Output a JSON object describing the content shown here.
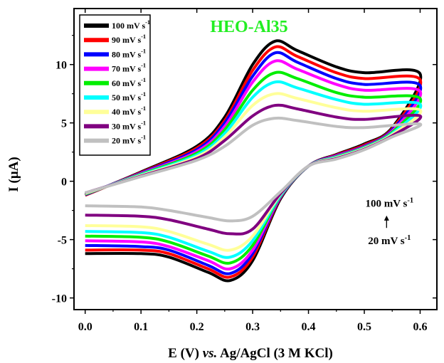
{
  "chart_data": {
    "type": "line",
    "title": "HEO-Al35",
    "xlabel_parts": [
      "E (V) ",
      "vs.",
      " Ag/AgCl (3 M KCl)"
    ],
    "ylabel": "I (µA)",
    "xlim": [
      -0.02,
      0.63
    ],
    "ylim": [
      -11,
      14.8
    ],
    "xticks": [
      0.0,
      0.1,
      0.2,
      0.3,
      0.4,
      0.5,
      0.6
    ],
    "xtick_labels": [
      "0.0",
      "0.1",
      "0.2",
      "0.3",
      "0.4",
      "0.5",
      "0.6"
    ],
    "yticks": [
      -10,
      -5,
      0,
      5,
      10
    ],
    "ytick_labels": [
      "-10",
      "-5",
      "0",
      "5",
      "10"
    ],
    "grid": false,
    "legend_position": "top-left",
    "annotation": {
      "top_base": "100 mV s",
      "bottom_base": "20 mV s",
      "superscript": "-1",
      "arrow_from_y": -4.0,
      "arrow_to_y": -3.0,
      "x": 0.545
    },
    "series": [
      {
        "name_base": "100 mV s",
        "name_sup": "-1",
        "color": "#000000",
        "x": [
          0.0,
          0.1,
          0.2,
          0.25,
          0.3,
          0.34,
          0.38,
          0.45,
          0.5,
          0.6,
          0.55,
          0.5,
          0.45,
          0.4,
          0.35,
          0.3,
          0.26,
          0.22,
          0.15,
          0.1,
          0.0
        ],
        "y": [
          -1.2,
          0.8,
          3.0,
          5.5,
          10.0,
          12.0,
          11.2,
          9.8,
          9.3,
          9.2,
          4.6,
          3.2,
          2.3,
          1.3,
          -1.5,
          -6.8,
          -8.5,
          -7.8,
          -6.5,
          -6.2,
          -6.2
        ]
      },
      {
        "name_base": "90 mV s",
        "name_sup": "-1",
        "color": "#ff0000",
        "x": [
          0.0,
          0.1,
          0.2,
          0.25,
          0.3,
          0.34,
          0.38,
          0.45,
          0.5,
          0.6,
          0.55,
          0.5,
          0.45,
          0.4,
          0.35,
          0.3,
          0.26,
          0.22,
          0.15,
          0.1,
          0.0
        ],
        "y": [
          -1.2,
          0.75,
          2.85,
          5.2,
          9.5,
          11.5,
          10.7,
          9.3,
          8.8,
          8.7,
          4.5,
          3.1,
          2.25,
          1.3,
          -1.4,
          -6.5,
          -8.2,
          -7.5,
          -6.2,
          -5.9,
          -5.9
        ]
      },
      {
        "name_base": "80 mV s",
        "name_sup": "-1",
        "color": "#0000ff",
        "x": [
          0.0,
          0.1,
          0.2,
          0.25,
          0.3,
          0.34,
          0.38,
          0.45,
          0.5,
          0.6,
          0.55,
          0.5,
          0.45,
          0.4,
          0.35,
          0.3,
          0.26,
          0.22,
          0.15,
          0.1,
          0.0
        ],
        "y": [
          -1.15,
          0.7,
          2.7,
          5.0,
          9.0,
          11.0,
          10.2,
          8.8,
          8.3,
          8.2,
          4.4,
          3.0,
          2.2,
          1.3,
          -1.35,
          -6.2,
          -7.9,
          -7.2,
          -5.9,
          -5.6,
          -5.5
        ]
      },
      {
        "name_base": "70 mV s",
        "name_sup": "-1",
        "color": "#ff00ff",
        "x": [
          0.0,
          0.1,
          0.2,
          0.25,
          0.3,
          0.34,
          0.38,
          0.45,
          0.5,
          0.6,
          0.55,
          0.5,
          0.45,
          0.4,
          0.35,
          0.3,
          0.26,
          0.22,
          0.15,
          0.1,
          0.0
        ],
        "y": [
          -1.1,
          0.65,
          2.55,
          4.7,
          8.5,
          10.3,
          9.6,
          8.3,
          7.8,
          7.7,
          4.3,
          2.95,
          2.15,
          1.3,
          -1.3,
          -5.9,
          -7.5,
          -6.8,
          -5.6,
          -5.2,
          -5.1
        ]
      },
      {
        "name_base": "60 mV s",
        "name_sup": "-1",
        "color": "#00ee00",
        "x": [
          0.0,
          0.1,
          0.2,
          0.25,
          0.3,
          0.34,
          0.38,
          0.45,
          0.5,
          0.6,
          0.55,
          0.5,
          0.45,
          0.4,
          0.35,
          0.3,
          0.26,
          0.22,
          0.15,
          0.1,
          0.0
        ],
        "y": [
          -1.1,
          0.6,
          2.4,
          4.4,
          7.8,
          9.3,
          8.8,
          7.6,
          7.2,
          7.1,
          4.2,
          2.9,
          2.1,
          1.3,
          -1.25,
          -5.5,
          -7.0,
          -6.4,
          -5.2,
          -4.8,
          -4.7
        ]
      },
      {
        "name_base": "50 mV s",
        "name_sup": "-1",
        "color": "#00ffff",
        "x": [
          0.0,
          0.1,
          0.2,
          0.25,
          0.3,
          0.34,
          0.38,
          0.45,
          0.5,
          0.6,
          0.55,
          0.5,
          0.45,
          0.4,
          0.35,
          0.3,
          0.26,
          0.22,
          0.15,
          0.1,
          0.0
        ],
        "y": [
          -1.05,
          0.55,
          2.25,
          4.1,
          7.2,
          8.5,
          8.0,
          7.0,
          6.6,
          6.6,
          4.1,
          2.85,
          2.05,
          1.3,
          -1.2,
          -5.1,
          -6.5,
          -6.0,
          -4.8,
          -4.4,
          -4.3
        ]
      },
      {
        "name_base": "40 mV s",
        "name_sup": "-1",
        "color": "#ffff99",
        "x": [
          0.0,
          0.1,
          0.2,
          0.25,
          0.3,
          0.34,
          0.38,
          0.45,
          0.5,
          0.6,
          0.55,
          0.5,
          0.45,
          0.4,
          0.35,
          0.3,
          0.26,
          0.22,
          0.15,
          0.1,
          0.0
        ],
        "y": [
          -1.05,
          0.5,
          2.1,
          3.8,
          6.5,
          7.5,
          7.1,
          6.3,
          6.0,
          6.1,
          4.0,
          2.8,
          2.0,
          1.3,
          -1.1,
          -4.7,
          -5.9,
          -5.4,
          -4.3,
          -3.9,
          -3.8
        ]
      },
      {
        "name_base": "30 mV s",
        "name_sup": "-1",
        "color": "#800080",
        "x": [
          0.0,
          0.1,
          0.2,
          0.25,
          0.3,
          0.34,
          0.38,
          0.45,
          0.5,
          0.6,
          0.55,
          0.5,
          0.45,
          0.4,
          0.35,
          0.3,
          0.26,
          0.22,
          0.15,
          0.1,
          0.0
        ],
        "y": [
          -1.0,
          0.45,
          1.95,
          3.5,
          5.6,
          6.5,
          6.2,
          5.5,
          5.3,
          5.6,
          3.9,
          2.75,
          1.95,
          1.3,
          -1.05,
          -4.1,
          -4.5,
          -4.1,
          -3.3,
          -3.0,
          -2.9
        ]
      },
      {
        "name_base": "20 mV s",
        "name_sup": "-1",
        "color": "#c0c0c0",
        "x": [
          0.0,
          0.1,
          0.2,
          0.25,
          0.3,
          0.34,
          0.38,
          0.45,
          0.5,
          0.6,
          0.55,
          0.5,
          0.45,
          0.4,
          0.35,
          0.3,
          0.26,
          0.22,
          0.15,
          0.1,
          0.0
        ],
        "y": [
          -1.0,
          0.4,
          1.8,
          3.0,
          4.8,
          5.4,
          5.2,
          4.7,
          4.6,
          4.9,
          3.8,
          2.7,
          1.9,
          1.3,
          -0.9,
          -3.0,
          -3.4,
          -3.1,
          -2.5,
          -2.2,
          -2.1
        ]
      }
    ]
  }
}
